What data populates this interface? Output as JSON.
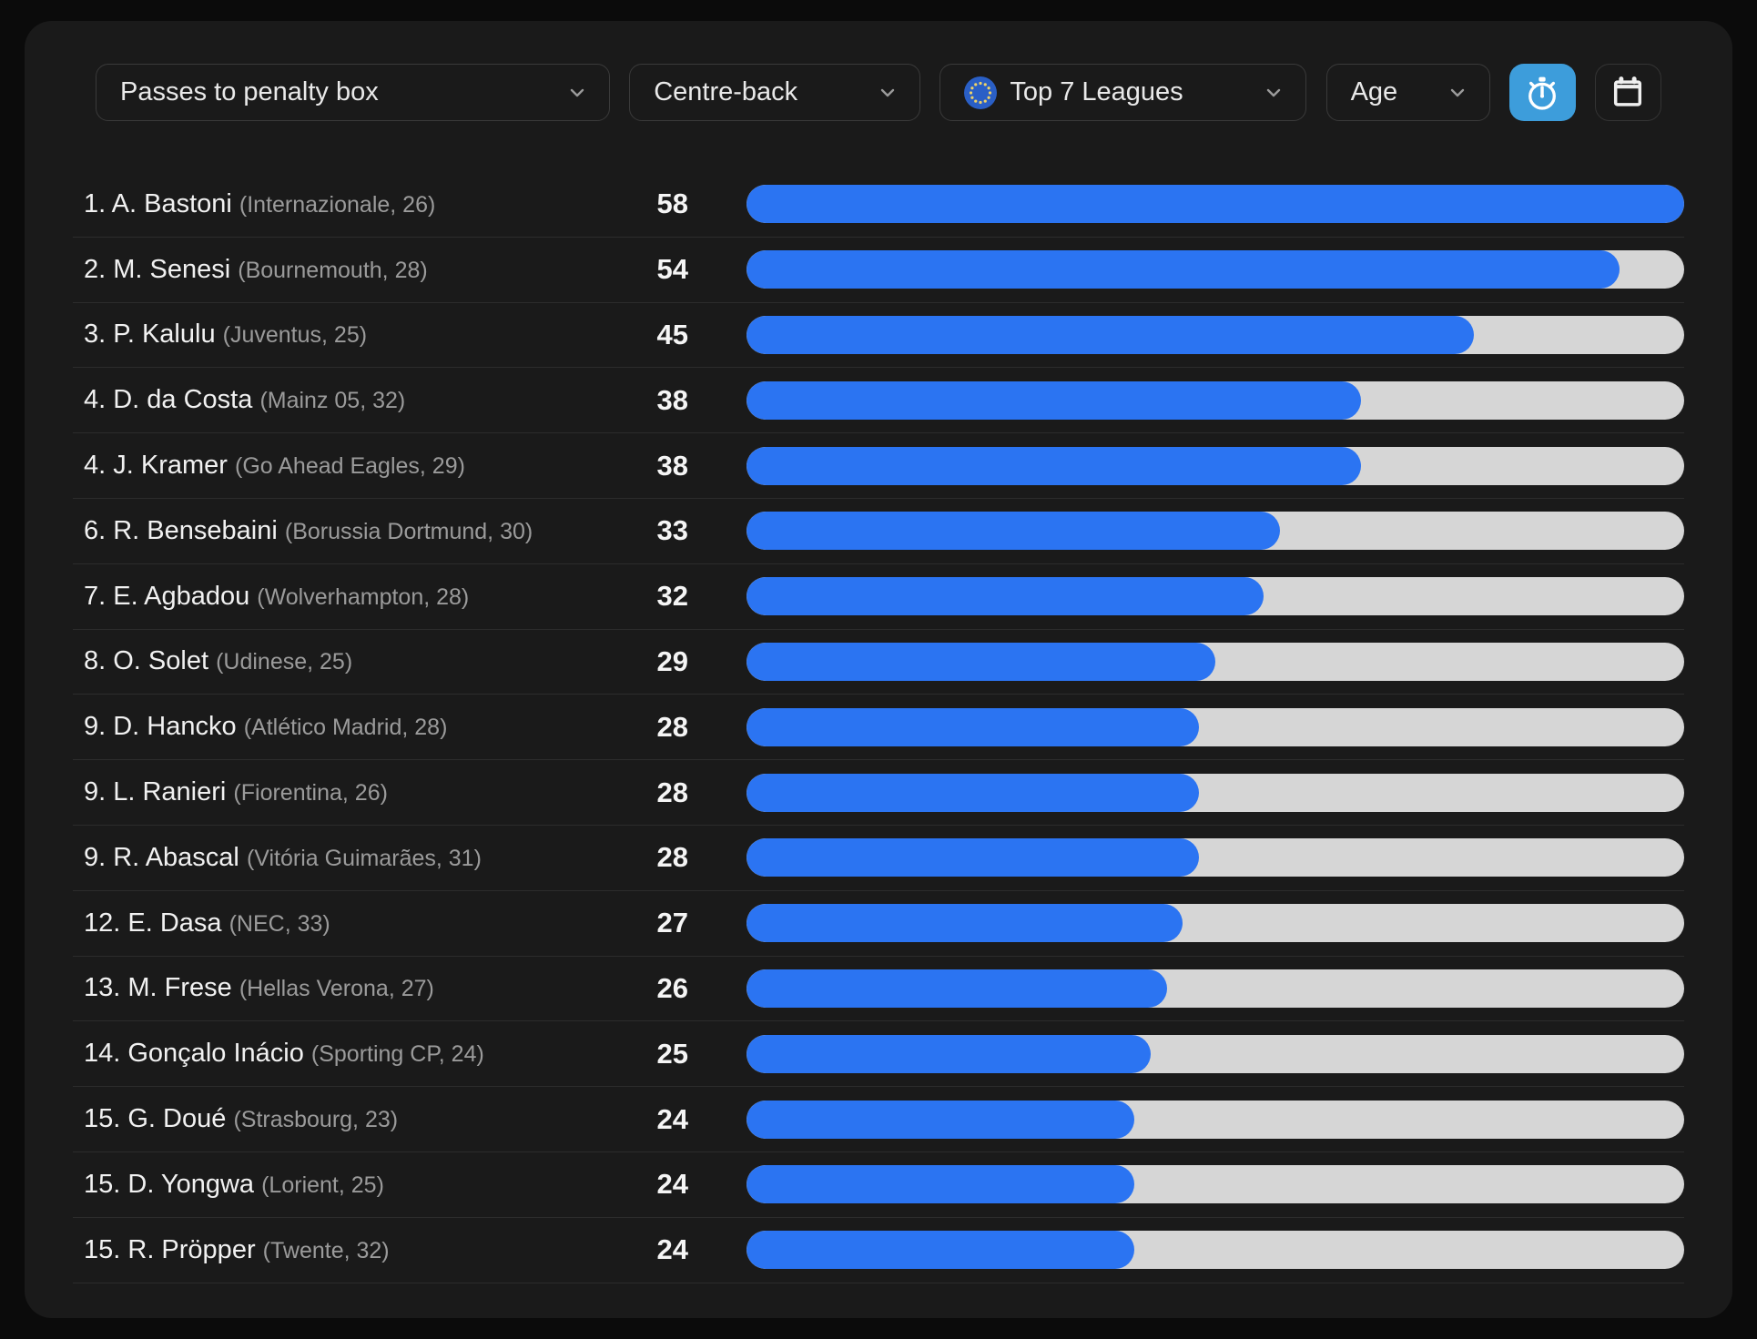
{
  "toolbar": {
    "metric_dropdown": {
      "value": "Passes to penalty box"
    },
    "position_dropdown": {
      "value": "Centre-back"
    },
    "league_dropdown": {
      "value": "Top 7 Leagues",
      "icon": "eu-flag-icon"
    },
    "age_dropdown": {
      "value": "Age"
    },
    "timer_button": {
      "icon": "stopwatch-icon",
      "active": true
    },
    "calendar_button": {
      "icon": "calendar-icon",
      "active": false
    }
  },
  "leaderboard": {
    "max_value": 58,
    "rows": [
      {
        "rank": "1",
        "name": "A. Bastoni",
        "club": "Internazionale",
        "age": "26",
        "value": 58
      },
      {
        "rank": "2",
        "name": "M. Senesi",
        "club": "Bournemouth",
        "age": "28",
        "value": 54
      },
      {
        "rank": "3",
        "name": "P. Kalulu",
        "club": "Juventus",
        "age": "25",
        "value": 45
      },
      {
        "rank": "4",
        "name": "D. da Costa",
        "club": "Mainz 05",
        "age": "32",
        "value": 38
      },
      {
        "rank": "4",
        "name": "J. Kramer",
        "club": "Go Ahead Eagles",
        "age": "29",
        "value": 38
      },
      {
        "rank": "6",
        "name": "R. Bensebaini",
        "club": "Borussia Dortmund",
        "age": "30",
        "value": 33
      },
      {
        "rank": "7",
        "name": "E. Agbadou",
        "club": "Wolverhampton",
        "age": "28",
        "value": 32
      },
      {
        "rank": "8",
        "name": "O. Solet",
        "club": "Udinese",
        "age": "25",
        "value": 29
      },
      {
        "rank": "9",
        "name": "D. Hancko",
        "club": "Atlético Madrid",
        "age": "28",
        "value": 28
      },
      {
        "rank": "9",
        "name": "L. Ranieri",
        "club": "Fiorentina",
        "age": "26",
        "value": 28
      },
      {
        "rank": "9",
        "name": "R. Abascal",
        "club": "Vitória Guimarães",
        "age": "31",
        "value": 28
      },
      {
        "rank": "12",
        "name": "E. Dasa",
        "club": "NEC",
        "age": "33",
        "value": 27
      },
      {
        "rank": "13",
        "name": "M. Frese",
        "club": "Hellas Verona",
        "age": "27",
        "value": 26
      },
      {
        "rank": "14",
        "name": "Gonçalo Inácio",
        "club": "Sporting CP",
        "age": "24",
        "value": 25
      },
      {
        "rank": "15",
        "name": "G. Doué",
        "club": "Strasbourg",
        "age": "23",
        "value": 24
      },
      {
        "rank": "15",
        "name": "D. Yongwa",
        "club": "Lorient",
        "age": "25",
        "value": 24
      },
      {
        "rank": "15",
        "name": "R. Pröpper",
        "club": "Twente",
        "age": "32",
        "value": 24
      }
    ]
  },
  "colors": {
    "bar_fill": "#2b74f2",
    "bar_track": "#d6d6d6",
    "button_active": "#3d9ddb",
    "card_background": "#1a1a1a",
    "page_background": "#0b0b0b"
  },
  "chart_data": {
    "type": "bar",
    "title": "Passes to penalty box",
    "categories": [
      "1. A. Bastoni (Internazionale, 26)",
      "2. M. Senesi (Bournemouth, 28)",
      "3. P. Kalulu (Juventus, 25)",
      "4. D. da Costa (Mainz 05, 32)",
      "4. J. Kramer (Go Ahead Eagles, 29)",
      "6. R. Bensebaini (Borussia Dortmund, 30)",
      "7. E. Agbadou (Wolverhampton, 28)",
      "8. O. Solet (Udinese, 25)",
      "9. D. Hancko (Atlético Madrid, 28)",
      "9. L. Ranieri (Fiorentina, 26)",
      "9. R. Abascal (Vitória Guimarães, 31)",
      "12. E. Dasa (NEC, 33)",
      "13. M. Frese (Hellas Verona, 27)",
      "14. Gonçalo Inácio (Sporting CP, 24)",
      "15. G. Doué (Strasbourg, 23)",
      "15. D. Yongwa (Lorient, 25)",
      "15. R. Pröpper (Twente, 32)"
    ],
    "values": [
      58,
      54,
      45,
      38,
      38,
      33,
      32,
      29,
      28,
      28,
      28,
      27,
      26,
      25,
      24,
      24,
      24
    ],
    "xlabel": "",
    "ylabel": "",
    "xlim": [
      0,
      58
    ],
    "orientation": "horizontal",
    "grid": false,
    "legend": false
  }
}
